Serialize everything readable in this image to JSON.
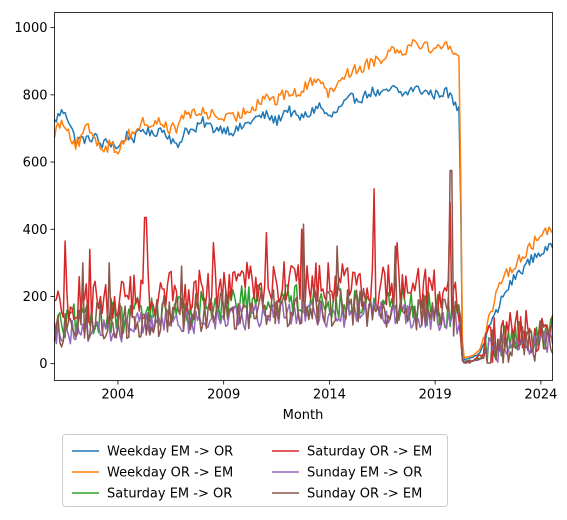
{
  "chart_data": {
    "type": "line",
    "title": "",
    "xlabel": "Month",
    "ylabel": "",
    "xlim": [
      2001.0,
      2024.55
    ],
    "ylim": [
      -50,
      1045
    ],
    "x_ticks": [
      2004,
      2009,
      2014,
      2019,
      2024
    ],
    "y_ticks": [
      0,
      200,
      400,
      600,
      800,
      1000
    ],
    "grid": false,
    "legend": {
      "placement": "bottom-below",
      "columns": 2
    },
    "series": [
      {
        "name": "Weekday EM -> OR",
        "color": "#1f77b4",
        "keypoints": [
          [
            2001.0,
            720
          ],
          [
            2001.2,
            740
          ],
          [
            2001.5,
            755
          ],
          [
            2001.8,
            700
          ],
          [
            2002.0,
            660
          ],
          [
            2002.3,
            670
          ],
          [
            2002.6,
            665
          ],
          [
            2002.9,
            680
          ],
          [
            2003.2,
            650
          ],
          [
            2003.5,
            660
          ],
          [
            2003.8,
            655
          ],
          [
            2004.0,
            640
          ],
          [
            2004.4,
            680
          ],
          [
            2004.8,
            670
          ],
          [
            2005.2,
            700
          ],
          [
            2005.6,
            680
          ],
          [
            2006.0,
            700
          ],
          [
            2006.4,
            680
          ],
          [
            2006.8,
            640
          ],
          [
            2007.2,
            700
          ],
          [
            2007.6,
            690
          ],
          [
            2008.0,
            720
          ],
          [
            2008.5,
            700
          ],
          [
            2009.0,
            700
          ],
          [
            2009.5,
            690
          ],
          [
            2010.0,
            710
          ],
          [
            2010.5,
            730
          ],
          [
            2011.0,
            740
          ],
          [
            2011.5,
            720
          ],
          [
            2012.0,
            760
          ],
          [
            2012.5,
            730
          ],
          [
            2013.0,
            740
          ],
          [
            2013.5,
            770
          ],
          [
            2014.0,
            730
          ],
          [
            2014.5,
            760
          ],
          [
            2015.0,
            790
          ],
          [
            2015.5,
            790
          ],
          [
            2016.0,
            810
          ],
          [
            2016.5,
            800
          ],
          [
            2017.0,
            820
          ],
          [
            2017.5,
            800
          ],
          [
            2018.0,
            820
          ],
          [
            2018.5,
            810
          ],
          [
            2019.0,
            800
          ],
          [
            2019.5,
            810
          ],
          [
            2019.8,
            790
          ],
          [
            2020.0,
            760
          ],
          [
            2020.15,
            770
          ],
          [
            2020.3,
            10
          ],
          [
            2020.5,
            15
          ],
          [
            2020.8,
            20
          ],
          [
            2021.1,
            30
          ],
          [
            2021.3,
            60
          ],
          [
            2021.6,
            120
          ],
          [
            2021.9,
            150
          ],
          [
            2022.2,
            200
          ],
          [
            2022.5,
            230
          ],
          [
            2022.8,
            260
          ],
          [
            2023.1,
            280
          ],
          [
            2023.4,
            300
          ],
          [
            2023.7,
            320
          ],
          [
            2024.0,
            330
          ],
          [
            2024.3,
            340
          ],
          [
            2024.55,
            345
          ]
        ],
        "noise": 15
      },
      {
        "name": "Weekday OR -> EM",
        "color": "#ff7f0e",
        "keypoints": [
          [
            2001.0,
            690
          ],
          [
            2001.3,
            720
          ],
          [
            2001.6,
            710
          ],
          [
            2001.9,
            650
          ],
          [
            2002.2,
            660
          ],
          [
            2002.5,
            700
          ],
          [
            2002.8,
            690
          ],
          [
            2003.1,
            650
          ],
          [
            2003.4,
            645
          ],
          [
            2003.7,
            650
          ],
          [
            2004.0,
            635
          ],
          [
            2004.4,
            680
          ],
          [
            2004.8,
            690
          ],
          [
            2005.2,
            720
          ],
          [
            2005.6,
            710
          ],
          [
            2006.0,
            720
          ],
          [
            2006.4,
            700
          ],
          [
            2006.8,
            700
          ],
          [
            2007.2,
            750
          ],
          [
            2007.6,
            740
          ],
          [
            2008.0,
            750
          ],
          [
            2008.5,
            740
          ],
          [
            2009.0,
            730
          ],
          [
            2009.5,
            730
          ],
          [
            2010.0,
            750
          ],
          [
            2010.5,
            770
          ],
          [
            2011.0,
            800
          ],
          [
            2011.5,
            780
          ],
          [
            2012.0,
            810
          ],
          [
            2012.5,
            800
          ],
          [
            2013.0,
            830
          ],
          [
            2013.5,
            860
          ],
          [
            2014.0,
            800
          ],
          [
            2014.5,
            850
          ],
          [
            2015.0,
            870
          ],
          [
            2015.5,
            880
          ],
          [
            2016.0,
            900
          ],
          [
            2016.5,
            910
          ],
          [
            2017.0,
            940
          ],
          [
            2017.5,
            930
          ],
          [
            2018.0,
            960
          ],
          [
            2018.5,
            950
          ],
          [
            2019.0,
            930
          ],
          [
            2019.5,
            960
          ],
          [
            2019.8,
            940
          ],
          [
            2020.0,
            900
          ],
          [
            2020.15,
            910
          ],
          [
            2020.3,
            15
          ],
          [
            2020.5,
            20
          ],
          [
            2020.8,
            25
          ],
          [
            2021.1,
            40
          ],
          [
            2021.3,
            80
          ],
          [
            2021.6,
            150
          ],
          [
            2021.9,
            200
          ],
          [
            2022.2,
            250
          ],
          [
            2022.5,
            280
          ],
          [
            2022.8,
            300
          ],
          [
            2023.1,
            320
          ],
          [
            2023.4,
            340
          ],
          [
            2023.7,
            360
          ],
          [
            2024.0,
            380
          ],
          [
            2024.3,
            400
          ],
          [
            2024.55,
            400
          ]
        ],
        "noise": 18
      },
      {
        "name": "Saturday EM -> OR",
        "color": "#2ca02c",
        "keypoints": [
          [
            2001.0,
            110
          ],
          [
            2002.0,
            130
          ],
          [
            2003.0,
            140
          ],
          [
            2004.0,
            130
          ],
          [
            2005.0,
            150
          ],
          [
            2006.0,
            160
          ],
          [
            2007.0,
            160
          ],
          [
            2008.0,
            170
          ],
          [
            2009.0,
            180
          ],
          [
            2010.0,
            185
          ],
          [
            2011.0,
            190
          ],
          [
            2012.0,
            195
          ],
          [
            2013.0,
            190
          ],
          [
            2014.0,
            180
          ],
          [
            2015.0,
            180
          ],
          [
            2016.0,
            180
          ],
          [
            2017.0,
            180
          ],
          [
            2018.0,
            170
          ],
          [
            2019.0,
            160
          ],
          [
            2019.8,
            150
          ],
          [
            2020.2,
            120
          ],
          [
            2020.3,
            5
          ],
          [
            2020.8,
            10
          ],
          [
            2021.2,
            20
          ],
          [
            2021.6,
            50
          ],
          [
            2022.0,
            60
          ],
          [
            2022.5,
            70
          ],
          [
            2023.0,
            75
          ],
          [
            2023.5,
            80
          ],
          [
            2024.0,
            85
          ],
          [
            2024.55,
            100
          ]
        ],
        "noise": 50
      },
      {
        "name": "Saturday OR -> EM",
        "color": "#d62728",
        "keypoints": [
          [
            2001.0,
            170
          ],
          [
            2002.0,
            190
          ],
          [
            2003.0,
            190
          ],
          [
            2004.0,
            180
          ],
          [
            2005.0,
            200
          ],
          [
            2006.0,
            210
          ],
          [
            2007.0,
            210
          ],
          [
            2008.0,
            220
          ],
          [
            2009.0,
            230
          ],
          [
            2010.0,
            235
          ],
          [
            2011.0,
            240
          ],
          [
            2012.0,
            245
          ],
          [
            2013.0,
            240
          ],
          [
            2014.0,
            230
          ],
          [
            2015.0,
            230
          ],
          [
            2016.0,
            230
          ],
          [
            2017.0,
            225
          ],
          [
            2018.0,
            220
          ],
          [
            2019.0,
            210
          ],
          [
            2019.8,
            200
          ],
          [
            2020.2,
            150
          ],
          [
            2020.3,
            5
          ],
          [
            2020.8,
            10
          ],
          [
            2021.2,
            25
          ],
          [
            2021.6,
            60
          ],
          [
            2022.0,
            80
          ],
          [
            2022.5,
            90
          ],
          [
            2023.0,
            100
          ],
          [
            2023.5,
            100
          ],
          [
            2024.0,
            110
          ],
          [
            2024.55,
            130
          ]
        ],
        "noise": 70,
        "spikes": [
          [
            2001.5,
            365
          ],
          [
            2002.7,
            340
          ],
          [
            2005.3,
            435
          ],
          [
            2008.5,
            360
          ],
          [
            2011.0,
            390
          ],
          [
            2012.7,
            400
          ],
          [
            2016.1,
            520
          ],
          [
            2017.2,
            360
          ],
          [
            2019.7,
            480
          ]
        ]
      },
      {
        "name": "Sunday EM -> OR",
        "color": "#9467bd",
        "keypoints": [
          [
            2001.0,
            90
          ],
          [
            2002.0,
            100
          ],
          [
            2003.0,
            105
          ],
          [
            2004.0,
            100
          ],
          [
            2005.0,
            115
          ],
          [
            2006.0,
            120
          ],
          [
            2007.0,
            125
          ],
          [
            2008.0,
            130
          ],
          [
            2009.0,
            135
          ],
          [
            2010.0,
            140
          ],
          [
            2011.0,
            145
          ],
          [
            2012.0,
            150
          ],
          [
            2013.0,
            150
          ],
          [
            2014.0,
            145
          ],
          [
            2015.0,
            150
          ],
          [
            2016.0,
            150
          ],
          [
            2017.0,
            150
          ],
          [
            2018.0,
            145
          ],
          [
            2019.0,
            140
          ],
          [
            2019.8,
            130
          ],
          [
            2020.2,
            100
          ],
          [
            2020.3,
            3
          ],
          [
            2020.8,
            8
          ],
          [
            2021.2,
            15
          ],
          [
            2021.6,
            35
          ],
          [
            2022.0,
            45
          ],
          [
            2022.5,
            55
          ],
          [
            2023.0,
            60
          ],
          [
            2023.5,
            60
          ],
          [
            2024.0,
            65
          ],
          [
            2024.55,
            75
          ]
        ],
        "noise": 40
      },
      {
        "name": "Sunday OR -> EM",
        "color": "#8c564b",
        "keypoints": [
          [
            2001.0,
            100
          ],
          [
            2002.0,
            120
          ],
          [
            2003.0,
            125
          ],
          [
            2004.0,
            120
          ],
          [
            2005.0,
            130
          ],
          [
            2006.0,
            140
          ],
          [
            2007.0,
            145
          ],
          [
            2008.0,
            150
          ],
          [
            2009.0,
            155
          ],
          [
            2010.0,
            160
          ],
          [
            2011.0,
            165
          ],
          [
            2012.0,
            170
          ],
          [
            2013.0,
            170
          ],
          [
            2014.0,
            165
          ],
          [
            2015.0,
            170
          ],
          [
            2016.0,
            170
          ],
          [
            2017.0,
            165
          ],
          [
            2018.0,
            160
          ],
          [
            2019.0,
            155
          ],
          [
            2019.8,
            140
          ],
          [
            2020.2,
            110
          ],
          [
            2020.3,
            3
          ],
          [
            2020.8,
            8
          ],
          [
            2021.2,
            15
          ],
          [
            2021.6,
            40
          ],
          [
            2022.0,
            50
          ],
          [
            2022.5,
            60
          ],
          [
            2023.0,
            65
          ],
          [
            2023.5,
            65
          ],
          [
            2024.0,
            70
          ],
          [
            2024.55,
            90
          ]
        ],
        "noise": 60,
        "spikes": [
          [
            2002.3,
            300
          ],
          [
            2003.6,
            300
          ],
          [
            2007.0,
            290
          ],
          [
            2012.8,
            415
          ],
          [
            2014.4,
            350
          ],
          [
            2017.1,
            350
          ],
          [
            2019.75,
            575
          ]
        ]
      }
    ]
  }
}
